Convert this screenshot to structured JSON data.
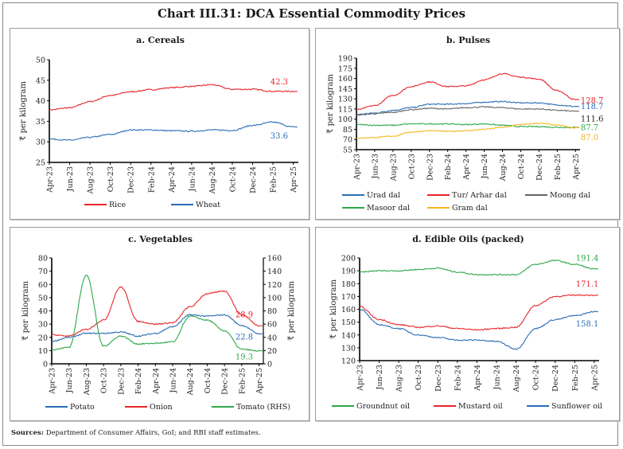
{
  "title": "Chart III.31: DCA Essential Commodity Prices",
  "sources": {
    "label": "Sources:",
    "text": "Department of Consumer Affairs, GoI; and RBI staff estimates."
  },
  "chart_data": [
    {
      "id": "cereals",
      "type": "line",
      "title": "a. Cereals",
      "ylabel": "₹ per kilogram",
      "ylim": [
        25,
        50
      ],
      "yticks": [
        25,
        30,
        35,
        40,
        45,
        50
      ],
      "x": [
        "Apr-23",
        "Jun-23",
        "Aug-23",
        "Oct-23",
        "Dec-23",
        "Feb-24",
        "Apr-24",
        "Jun-24",
        "Aug-24",
        "Oct-24",
        "Dec-24",
        "Feb-25",
        "Apr-25"
      ],
      "grid": false,
      "legend": "bottom",
      "series": [
        {
          "name": "Rice",
          "color": "#e8262a",
          "values": [
            37.8,
            38.3,
            39.8,
            41.3,
            42.2,
            42.7,
            43.2,
            43.5,
            43.9,
            42.8,
            42.8,
            42.3,
            42.3
          ],
          "end_label": "42.3"
        },
        {
          "name": "Wheat",
          "color": "#2a6db5",
          "values": [
            30.7,
            30.4,
            31.1,
            31.8,
            32.9,
            32.9,
            32.7,
            32.6,
            32.9,
            32.8,
            34.0,
            34.8,
            33.6
          ],
          "end_label": "33.6"
        }
      ]
    },
    {
      "id": "pulses",
      "type": "line",
      "title": "b. Pulses",
      "ylabel": "₹ per kilogram",
      "ylim": [
        55,
        190
      ],
      "yticks": [
        55,
        70,
        85,
        100,
        115,
        130,
        145,
        160,
        175,
        190
      ],
      "x": [
        "Apr-23",
        "Jun-23",
        "Aug-23",
        "Oct-23",
        "Dec-23",
        "Feb-24",
        "Apr-24",
        "Jun-24",
        "Aug-24",
        "Oct-24",
        "Dec-24",
        "Feb-25",
        "Apr-25"
      ],
      "grid": false,
      "legend": "bottom",
      "series": [
        {
          "name": "Urad dal",
          "color": "#2a6db5",
          "values": [
            107,
            109,
            113,
            117,
            122,
            122,
            123,
            125,
            126,
            124,
            124,
            121,
            118.7
          ],
          "end_label": "118.7"
        },
        {
          "name": "Tur/ Arhar dal",
          "color": "#e8262a",
          "values": [
            114,
            120,
            135,
            148,
            155,
            148,
            149,
            158,
            167,
            162,
            159,
            142,
            128.7
          ],
          "end_label": "128.7"
        },
        {
          "name": "Moong dal",
          "color": "#666666",
          "values": [
            106,
            108,
            110,
            114,
            116,
            115,
            117,
            118,
            117,
            115,
            115,
            113,
            111.6
          ],
          "end_label": "111.6"
        },
        {
          "name": "Masoor dal",
          "color": "#2ea84a",
          "values": [
            92,
            91,
            91,
            93,
            93,
            93,
            92,
            93,
            91,
            89,
            89,
            88,
            87.7
          ],
          "end_label": "87.7"
        },
        {
          "name": "Gram dal",
          "color": "#f5b820",
          "values": [
            72,
            73,
            75,
            81,
            83,
            82,
            83,
            85,
            88,
            92,
            94,
            91,
            87.0
          ],
          "end_label": "87.0"
        }
      ]
    },
    {
      "id": "vegetables",
      "type": "line",
      "title": "c. Vegetables",
      "ylabel": "₹ per kilogram",
      "ylabel_right": "₹ per kilogram",
      "ylim": [
        0,
        80
      ],
      "ylim_right": [
        0,
        160
      ],
      "yticks": [
        0,
        10,
        20,
        30,
        40,
        50,
        60,
        70,
        80
      ],
      "yticks_right": [
        0,
        20,
        40,
        60,
        80,
        100,
        120,
        140,
        160
      ],
      "x": [
        "Apr-23",
        "Jun-23",
        "Aug-23",
        "Oct-23",
        "Dec-23",
        "Feb-24",
        "Apr-24",
        "Jun-24",
        "Aug-24",
        "Oct-24",
        "Dec-24",
        "Feb-25",
        "Apr-25"
      ],
      "grid": false,
      "legend": "bottom",
      "series": [
        {
          "name": "Potato",
          "axis": "left",
          "color": "#2a6db5",
          "values": [
            17,
            20,
            23,
            23,
            24,
            21,
            23,
            28,
            37,
            36,
            37,
            29,
            22.8
          ],
          "end_label": "22.8"
        },
        {
          "name": "Onion",
          "axis": "left",
          "color": "#e8262a",
          "values": [
            22,
            21,
            26,
            33,
            58,
            32,
            30,
            31,
            43,
            53,
            55,
            37,
            28.9
          ],
          "end_label": "28.9"
        },
        {
          "name": "Tomato (RHS)",
          "axis": "right",
          "color": "#2ea84a",
          "values": [
            21,
            25,
            134,
            27,
            42,
            30,
            31,
            33,
            72,
            66,
            50,
            22,
            19.3
          ],
          "end_label": "19.3"
        }
      ]
    },
    {
      "id": "edible-oils",
      "type": "line",
      "title": "d. Edible Oils (packed)",
      "ylabel": "₹ per kilogram",
      "ylim": [
        120,
        200
      ],
      "yticks": [
        120,
        130,
        140,
        150,
        160,
        170,
        180,
        190,
        200
      ],
      "x": [
        "Apr-23",
        "Jun-23",
        "Aug-23",
        "Oct-23",
        "Dec-23",
        "Feb-24",
        "Apr-24",
        "Jun-24",
        "Aug-24",
        "Oct-24",
        "Dec-24",
        "Feb-25",
        "Apr-25"
      ],
      "grid": false,
      "legend": "bottom",
      "series": [
        {
          "name": "Groundnut oil",
          "color": "#2ea84a",
          "values": [
            189,
            190,
            190,
            191,
            192,
            189,
            187,
            187,
            187,
            195,
            198,
            195,
            191.4
          ],
          "end_label": "191.4"
        },
        {
          "name": "Mustard oil",
          "color": "#e8262a",
          "values": [
            162,
            152,
            148,
            146,
            147,
            145,
            144,
            145,
            146,
            163,
            170,
            171,
            171.1
          ],
          "end_label": "171.1"
        },
        {
          "name": "Sunflower oil",
          "color": "#2a6db5",
          "values": [
            160,
            148,
            145,
            140,
            138,
            136,
            136,
            135,
            129,
            145,
            152,
            155,
            158.1
          ],
          "end_label": "158.1"
        }
      ]
    }
  ]
}
